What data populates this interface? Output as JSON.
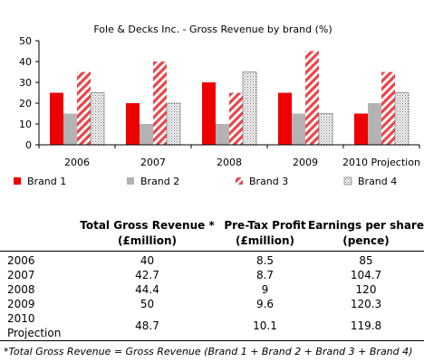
{
  "chart_data": {
    "type": "bar",
    "title": "Fole & Decks Inc. - Gross Revenue by brand (%)",
    "categories": [
      "2006",
      "2007",
      "2008",
      "2009",
      "2010 Projection"
    ],
    "series": [
      {
        "name": "Brand 1",
        "values": [
          25,
          20,
          30,
          25,
          15
        ],
        "color": "#ee0000",
        "pattern": "solid"
      },
      {
        "name": "Brand 2",
        "values": [
          15,
          10,
          10,
          15,
          20
        ],
        "color": "#b3b3b3",
        "pattern": "solid"
      },
      {
        "name": "Brand 3",
        "values": [
          35,
          40,
          25,
          45,
          35
        ],
        "color": "#e8474c",
        "pattern": "diagonal-stripes"
      },
      {
        "name": "Brand 4",
        "values": [
          25,
          20,
          35,
          15,
          25
        ],
        "color": "#777777",
        "pattern": "dotted"
      }
    ],
    "ylim": [
      0,
      50
    ],
    "yticks": [
      0,
      10,
      20,
      30,
      40,
      50
    ],
    "xlabel": "",
    "ylabel": "",
    "grid": false,
    "legend_position": "bottom"
  },
  "table": {
    "headers": [
      {
        "key": "year",
        "label": ""
      },
      {
        "key": "revenue",
        "label": "Total Gross Revenue * (£million)"
      },
      {
        "key": "profit",
        "label": "Pre-Tax Profit (£million)"
      },
      {
        "key": "eps",
        "label": "Earnings per share (pence)"
      }
    ],
    "rows": [
      {
        "year": "2006",
        "revenue": "40",
        "profit": "8.5",
        "eps": "85"
      },
      {
        "year": "2007",
        "revenue": "42.7",
        "profit": "8.7",
        "eps": "104.7"
      },
      {
        "year": "2008",
        "revenue": "44.4",
        "profit": "9",
        "eps": "120"
      },
      {
        "year": "2009",
        "revenue": "50",
        "profit": "9.6",
        "eps": "120.3"
      },
      {
        "year": "2010 Projection",
        "revenue": "48.7",
        "profit": "10.1",
        "eps": "119.8"
      }
    ]
  },
  "footnote": "*Total Gross Revenue = Gross Revenue (Brand 1 + Brand 2 + Brand 3 + Brand 4)"
}
